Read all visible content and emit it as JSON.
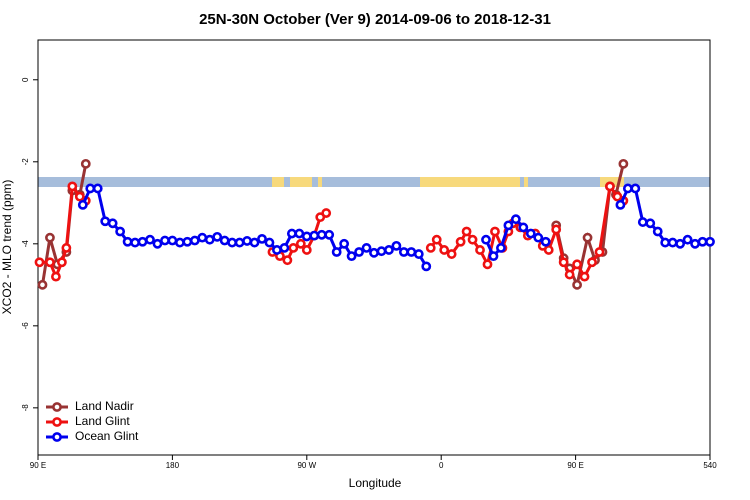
{
  "chart_data": {
    "type": "line",
    "title": "25N-30N October (Ver 9)   2014-09-06 to 2018-12-31",
    "xlabel": "Longitude",
    "ylabel": "XCO2 - MLO trend (ppm)",
    "xlim": [
      90,
      540
    ],
    "ylim": [
      -9.15,
      0.97
    ],
    "xticks": [
      {
        "value": 90,
        "label": "90 E"
      },
      180,
      {
        "value": 270,
        "label": "90 W"
      },
      {
        "value": 360,
        "label": "0"
      },
      {
        "value": 450,
        "label": "90 E"
      },
      540
    ],
    "yticks": [
      0,
      -2,
      -4,
      -6,
      -8
    ],
    "legend": "bottom-left",
    "series": [
      {
        "name": "Land Nadir",
        "color": "#993333",
        "x": [
          93,
          98,
          103,
          109,
          113,
          118,
          122,
          200,
          437,
          442,
          446,
          451,
          458,
          463,
          468,
          473,
          477,
          482
        ],
        "values": [
          -5.0,
          -3.85,
          -4.5,
          -4.2,
          -2.7,
          -2.8,
          -2.05,
          null,
          -3.55,
          -4.35,
          -4.6,
          -5.0,
          -3.85,
          -4.4,
          -4.2,
          -2.6,
          -2.8,
          -2.05
        ]
      },
      {
        "name": "Land Glint",
        "color": "#ee1111",
        "x": [
          91,
          98,
          102,
          106,
          109,
          113,
          118,
          122,
          200,
          247,
          252,
          257,
          261,
          266,
          270,
          275,
          279,
          283,
          320,
          353,
          357,
          362,
          367,
          373,
          377,
          381,
          386,
          391,
          396,
          401,
          405,
          408,
          413,
          418,
          423,
          428,
          432,
          437,
          442,
          446,
          451,
          456,
          461,
          466,
          473,
          478,
          482
        ],
        "values": [
          -4.45,
          -4.45,
          -4.8,
          -4.45,
          -4.1,
          -2.6,
          -2.85,
          -2.95,
          null,
          -4.2,
          -4.3,
          -4.4,
          -4.1,
          -4.0,
          -4.15,
          -3.8,
          -3.35,
          -3.25,
          null,
          -4.1,
          -3.9,
          -4.15,
          -4.25,
          -3.95,
          -3.7,
          -3.9,
          -4.15,
          -4.5,
          -3.7,
          -4.1,
          -3.7,
          -3.5,
          -3.6,
          -3.8,
          -3.75,
          -4.05,
          -4.15,
          -3.65,
          -4.45,
          -4.75,
          -4.5,
          -4.8,
          -4.45,
          -4.2,
          -2.6,
          -2.85,
          -2.95
        ]
      },
      {
        "name": "Ocean Glint",
        "color": "#0000ee",
        "x": [
          120,
          125,
          130,
          135,
          140,
          145,
          150,
          155,
          160,
          165,
          170,
          175,
          180,
          185,
          190,
          195,
          200,
          205,
          210,
          215,
          220,
          225,
          230,
          235,
          240,
          245,
          250,
          255,
          260,
          265,
          270,
          275,
          280,
          285,
          290,
          295,
          300,
          305,
          310,
          315,
          320,
          325,
          330,
          335,
          340,
          345,
          350,
          370,
          390,
          395,
          400,
          405,
          410,
          415,
          420,
          425,
          430,
          455,
          480,
          485,
          490,
          495,
          500,
          505,
          510,
          515,
          520,
          525,
          530,
          535,
          540
        ],
        "values": [
          -3.05,
          -2.65,
          -2.65,
          -3.45,
          -3.5,
          -3.7,
          -3.95,
          -3.97,
          -3.95,
          -3.9,
          -4.0,
          -3.92,
          -3.92,
          -3.97,
          -3.95,
          -3.92,
          -3.85,
          -3.9,
          -3.83,
          -3.92,
          -3.97,
          -3.97,
          -3.93,
          -3.97,
          -3.88,
          -3.97,
          -4.15,
          -4.1,
          -3.75,
          -3.75,
          -3.82,
          -3.8,
          -3.78,
          -3.78,
          -4.2,
          -4.0,
          -4.3,
          -4.2,
          -4.1,
          -4.22,
          -4.18,
          -4.15,
          -4.05,
          -4.2,
          -4.2,
          -4.25,
          -4.55,
          null,
          -3.9,
          -4.3,
          -4.1,
          -3.55,
          -3.4,
          -3.6,
          -3.75,
          -3.85,
          -3.95,
          null,
          -3.05,
          -2.65,
          -2.65,
          -3.47,
          -3.5,
          -3.7,
          -3.97,
          -3.97,
          -4.0,
          -3.9,
          -4.0,
          -3.95,
          -3.95
        ]
      }
    ]
  }
}
